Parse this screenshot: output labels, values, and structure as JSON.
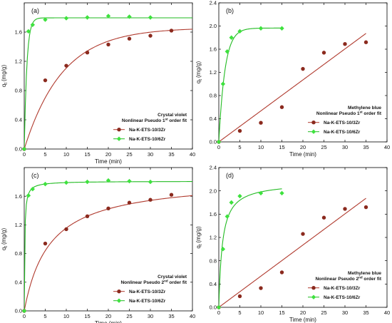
{
  "colors": {
    "red": "#8b2a1e",
    "redLine": "#b03a2e",
    "green": "#3ee23e",
    "greenLine": "#22bb22"
  },
  "chart_data": [
    {
      "type": "scatter",
      "panel": "(a)",
      "xlabel": "Time (min)",
      "ylabel": "q",
      "ylabel_sub": "t",
      "ylabel_unit": "(mg/g)",
      "xlim": [
        0,
        40
      ],
      "ylim": [
        0,
        2.0
      ],
      "xticks": [
        "0",
        "5",
        "10",
        "15",
        "20",
        "25",
        "30",
        "35",
        "40"
      ],
      "yticks": [
        "0.0",
        "0.4",
        "0.8",
        "1.2",
        "1.6"
      ],
      "legend_title_1": "Crystal violet",
      "legend_title_2": "Nonlinear Pseudo 1",
      "legend_title_sup": "st",
      "legend_title_3": " order fit",
      "legend_placement": "bottom-right",
      "series": [
        {
          "name": "Na-K-ETS-10/3Zr",
          "marker": "circle",
          "color": "#8b2a1e",
          "x": [
            0,
            5,
            10,
            15,
            20,
            25,
            30,
            35
          ],
          "y": [
            0,
            0.94,
            1.14,
            1.32,
            1.43,
            1.51,
            1.55,
            1.62
          ],
          "fit": {
            "model": "pfo",
            "qe": 1.66,
            "k": 0.11
          }
        },
        {
          "name": "Na-K-ETS-10/6Zr",
          "marker": "diamond",
          "color": "#3ee23e",
          "x": [
            0,
            1,
            2,
            5,
            10,
            15,
            20,
            25,
            30
          ],
          "y": [
            0,
            1.61,
            1.7,
            1.77,
            1.79,
            1.8,
            1.82,
            1.81,
            1.8
          ],
          "fit": {
            "model": "pfo",
            "qe": 1.795,
            "k": 1.6
          }
        }
      ]
    },
    {
      "type": "scatter",
      "panel": "(b)",
      "xlabel": "Time (min)",
      "ylabel": "q",
      "ylabel_sub": "t",
      "ylabel_unit": "(mg/g)",
      "xlim": [
        0,
        40
      ],
      "ylim": [
        0,
        2.4
      ],
      "xticks": [
        "0",
        "5",
        "10",
        "15",
        "20",
        "25",
        "30",
        "35",
        "40"
      ],
      "yticks": [
        "0.0",
        "0.4",
        "0.8",
        "1.2",
        "1.6",
        "2.0",
        "2.4"
      ],
      "legend_title_1": "Methylene blue",
      "legend_title_2": "Nonlinear Pseudo 1",
      "legend_title_sup": "st",
      "legend_title_3": " order fit",
      "legend_placement": "bottom-right",
      "series": [
        {
          "name": "Na-K-ETS-10/3Zr",
          "marker": "circle",
          "color": "#8b2a1e",
          "x": [
            0,
            5,
            10,
            15,
            20,
            25,
            30,
            35
          ],
          "y": [
            0,
            0.19,
            0.33,
            0.6,
            1.26,
            1.54,
            1.69,
            1.72
          ],
          "fit": {
            "model": "linear",
            "slope": 0.0535,
            "xmax": 35
          }
        },
        {
          "name": "Na-K-ETS-10/6Zr",
          "marker": "diamond",
          "color": "#3ee23e",
          "x": [
            0,
            1,
            2,
            3,
            5,
            10,
            15
          ],
          "y": [
            0,
            1.0,
            1.56,
            1.8,
            1.91,
            1.96,
            1.96
          ],
          "fit": {
            "model": "pfo",
            "qe": 1.965,
            "k": 0.68,
            "xmax": 15
          }
        }
      ]
    },
    {
      "type": "scatter",
      "panel": "(c)",
      "xlabel": "Time (min)",
      "ylabel": "q",
      "ylabel_sub": "t",
      "ylabel_unit": "(mg/g)",
      "xlim": [
        0,
        40
      ],
      "ylim": [
        0,
        2.0
      ],
      "xticks": [
        "0",
        "5",
        "10",
        "15",
        "20",
        "25",
        "30",
        "35",
        "40"
      ],
      "yticks": [
        "0.0",
        "0.4",
        "0.8",
        "1.2",
        "1.6"
      ],
      "legend_title_1": "Crystal violet",
      "legend_title_2": "Nonlinear Pseudo 2",
      "legend_title_sup": "nd",
      "legend_title_3": " order fit",
      "legend_placement": "bottom-right",
      "series": [
        {
          "name": "Na-K-ETS-10/3Zr",
          "marker": "circle",
          "color": "#8b2a1e",
          "x": [
            0,
            5,
            10,
            15,
            20,
            25,
            30,
            35
          ],
          "y": [
            0,
            0.94,
            1.14,
            1.32,
            1.43,
            1.51,
            1.55,
            1.62
          ],
          "fit": {
            "model": "pso",
            "qe": 1.85,
            "k": 0.09
          }
        },
        {
          "name": "Na-K-ETS-10/6Zr",
          "marker": "diamond",
          "color": "#3ee23e",
          "x": [
            0,
            1,
            2,
            5,
            10,
            15,
            20,
            25,
            30
          ],
          "y": [
            0,
            1.61,
            1.7,
            1.77,
            1.79,
            1.8,
            1.82,
            1.81,
            1.8
          ],
          "fit": {
            "model": "pso",
            "qe": 1.81,
            "k": 5.0
          }
        }
      ]
    },
    {
      "type": "scatter",
      "panel": "(d)",
      "xlabel": "Time (min)",
      "ylabel": "q",
      "ylabel_sub": "t",
      "ylabel_unit": "(mg/g)",
      "xlim": [
        0,
        40
      ],
      "ylim": [
        0,
        2.4
      ],
      "xticks": [
        "0",
        "5",
        "10",
        "15",
        "20",
        "25",
        "30",
        "35",
        "40"
      ],
      "yticks": [
        "0.0",
        "0.4",
        "0.8",
        "1.2",
        "1.6",
        "2.0",
        "2.4"
      ],
      "legend_title_1": "Methylene blue",
      "legend_title_2": "Nonlinear Pseudo 2",
      "legend_title_sup": "nd",
      "legend_title_3": " order fit",
      "legend_placement": "bottom-right",
      "series": [
        {
          "name": "Na-K-ETS-10/3Zr",
          "marker": "circle",
          "color": "#8b2a1e",
          "x": [
            0,
            5,
            10,
            15,
            20,
            25,
            30,
            35
          ],
          "y": [
            0,
            0.19,
            0.33,
            0.6,
            1.26,
            1.54,
            1.69,
            1.72
          ],
          "fit": {
            "model": "linear",
            "slope": 0.0535,
            "xmax": 35
          }
        },
        {
          "name": "Na-K-ETS-10/6Zr",
          "marker": "diamond",
          "color": "#3ee23e",
          "x": [
            0,
            1,
            2,
            3,
            5,
            10,
            15
          ],
          "y": [
            0,
            1.0,
            1.56,
            1.8,
            1.91,
            1.96,
            1.96
          ],
          "fit": {
            "model": "pso",
            "qe": 2.15,
            "k": 0.55,
            "xmax": 15
          }
        }
      ]
    }
  ]
}
